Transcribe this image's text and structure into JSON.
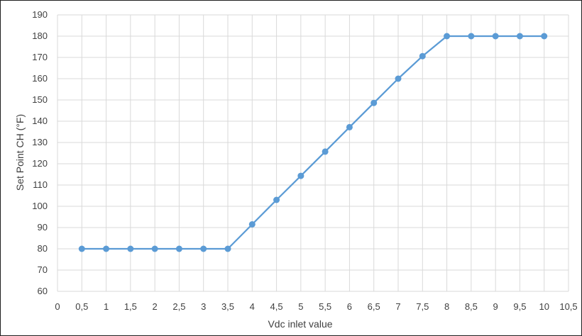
{
  "chart_data": {
    "type": "line",
    "title": "",
    "xlabel": "Vdc inlet value",
    "ylabel": "Set Point CH (°F)",
    "xlim": [
      0,
      10.5
    ],
    "ylim": [
      60,
      190
    ],
    "x_ticks": [
      {
        "value": 0,
        "label": "0"
      },
      {
        "value": 0.5,
        "label": "0,5"
      },
      {
        "value": 1,
        "label": "1"
      },
      {
        "value": 1.5,
        "label": "1,5"
      },
      {
        "value": 2,
        "label": "2"
      },
      {
        "value": 2.5,
        "label": "2,5"
      },
      {
        "value": 3,
        "label": "3"
      },
      {
        "value": 3.5,
        "label": "3,5"
      },
      {
        "value": 4,
        "label": "4"
      },
      {
        "value": 4.5,
        "label": "4,5"
      },
      {
        "value": 5,
        "label": "5"
      },
      {
        "value": 5.5,
        "label": "5,5"
      },
      {
        "value": 6,
        "label": "6"
      },
      {
        "value": 6.5,
        "label": "6,5"
      },
      {
        "value": 7,
        "label": "7"
      },
      {
        "value": 7.5,
        "label": "7,5"
      },
      {
        "value": 8,
        "label": "8"
      },
      {
        "value": 8.5,
        "label": "8,5"
      },
      {
        "value": 9,
        "label": "9"
      },
      {
        "value": 9.5,
        "label": "9,5"
      },
      {
        "value": 10,
        "label": "10"
      },
      {
        "value": 10.5,
        "label": "10,5"
      }
    ],
    "y_ticks": [
      {
        "value": 60,
        "label": "60"
      },
      {
        "value": 70,
        "label": "70"
      },
      {
        "value": 80,
        "label": "80"
      },
      {
        "value": 90,
        "label": "90"
      },
      {
        "value": 100,
        "label": "100"
      },
      {
        "value": 110,
        "label": "110"
      },
      {
        "value": 120,
        "label": "120"
      },
      {
        "value": 130,
        "label": "130"
      },
      {
        "value": 140,
        "label": "140"
      },
      {
        "value": 150,
        "label": "150"
      },
      {
        "value": 160,
        "label": "160"
      },
      {
        "value": 170,
        "label": "170"
      },
      {
        "value": 180,
        "label": "180"
      },
      {
        "value": 190,
        "label": "190"
      }
    ],
    "grid": true,
    "legend": "none",
    "colors": {
      "series": "#5b9bd5",
      "grid": "#d9d9d9",
      "text": "#404040"
    },
    "series": [
      {
        "x": [
          0.5,
          1,
          1.5,
          2,
          2.5,
          3,
          3.5,
          4,
          4.5,
          5,
          5.5,
          6,
          6.5,
          7,
          7.5,
          8,
          8.5,
          9,
          9.5,
          10
        ],
        "y": [
          80,
          80,
          80,
          80,
          80,
          80,
          80,
          91.5,
          103,
          114.3,
          125.7,
          137.2,
          148.6,
          160,
          170.6,
          180,
          180,
          180,
          180,
          180
        ]
      }
    ]
  }
}
